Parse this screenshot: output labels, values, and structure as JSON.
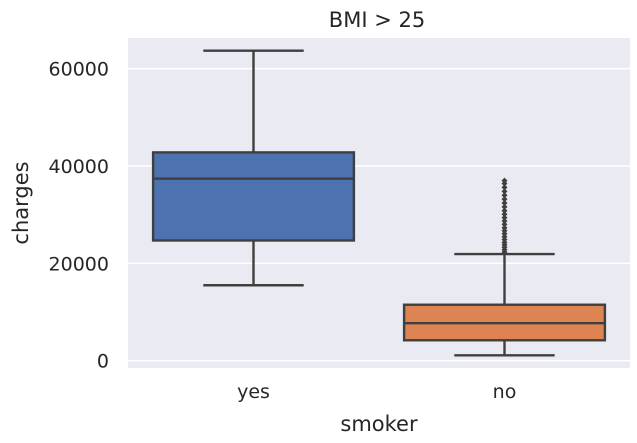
{
  "chart_data": {
    "type": "box",
    "title": "BMI > 25",
    "xlabel": "smoker",
    "ylabel": "charges",
    "categories": [
      "yes",
      "no"
    ],
    "ylim": [
      -1500,
      66300
    ],
    "yticks": [
      0,
      20000,
      40000,
      60000
    ],
    "ytick_labels": [
      "0",
      "20000",
      "40000",
      "60000"
    ],
    "grid": true,
    "colors": {
      "background": "#eaeaf2",
      "grid": "#ffffff",
      "line": "#3f3f3f",
      "box_fills": [
        "#4c72b0",
        "#dd8452"
      ]
    },
    "boxes": [
      {
        "category": "yes",
        "whisker_low": 15500,
        "q1": 24700,
        "median": 37400,
        "q3": 42800,
        "whisker_high": 63700,
        "outliers": []
      },
      {
        "category": "no",
        "whisker_low": 1100,
        "q1": 4200,
        "median": 7700,
        "q3": 11500,
        "whisker_high": 21900,
        "outliers": [
          22300,
          22800,
          23300,
          23800,
          24300,
          24900,
          25500,
          26100,
          26700,
          27300,
          28000,
          28700,
          29400,
          30100,
          30800,
          31600,
          32400,
          33200,
          34000,
          34800,
          35600,
          36400,
          37000
        ]
      }
    ]
  }
}
